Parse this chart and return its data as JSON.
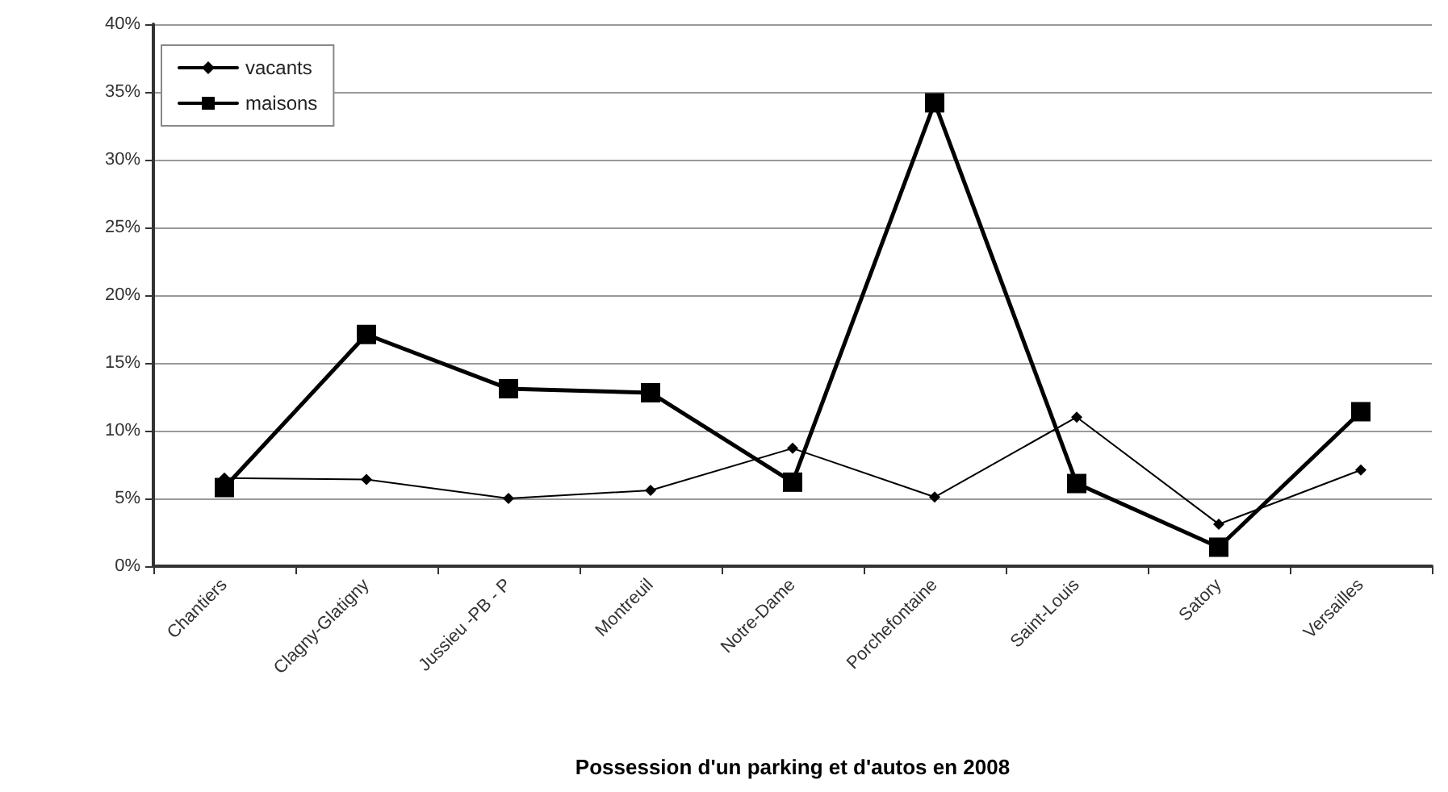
{
  "chart_data": {
    "type": "line",
    "xlabel": "Possession d'un parking et d'autos en 2008",
    "categories": [
      "Chantiers",
      "Clagny-Glatigny",
      "Jussieu -PB - P",
      "Montreuil",
      "Notre-Dame",
      "Porchefontaine",
      "Saint-Louis",
      "Satory",
      "Versailles"
    ],
    "series": [
      {
        "name": "vacants",
        "color": "#000000",
        "marker": "diamond",
        "values": [
          6.5,
          6.4,
          5.0,
          5.6,
          8.7,
          5.1,
          11.0,
          3.1,
          7.1
        ]
      },
      {
        "name": "maisons",
        "color": "#000000",
        "marker": "square",
        "values": [
          5.8,
          17.1,
          13.1,
          12.8,
          6.2,
          34.2,
          6.1,
          1.4,
          11.4
        ]
      }
    ],
    "ylim": [
      0,
      40
    ],
    "yticks": [
      {
        "value": 0,
        "label": "0%"
      },
      {
        "value": 5,
        "label": "5%"
      },
      {
        "value": 10,
        "label": "10%"
      },
      {
        "value": 15,
        "label": "15%"
      },
      {
        "value": 20,
        "label": "20%"
      },
      {
        "value": 25,
        "label": "25%"
      },
      {
        "value": 30,
        "label": "30%"
      },
      {
        "value": 35,
        "label": "35%"
      },
      {
        "value": 40,
        "label": "40%"
      }
    ],
    "grid": "y",
    "legend": "top left",
    "line_style": "solid"
  }
}
